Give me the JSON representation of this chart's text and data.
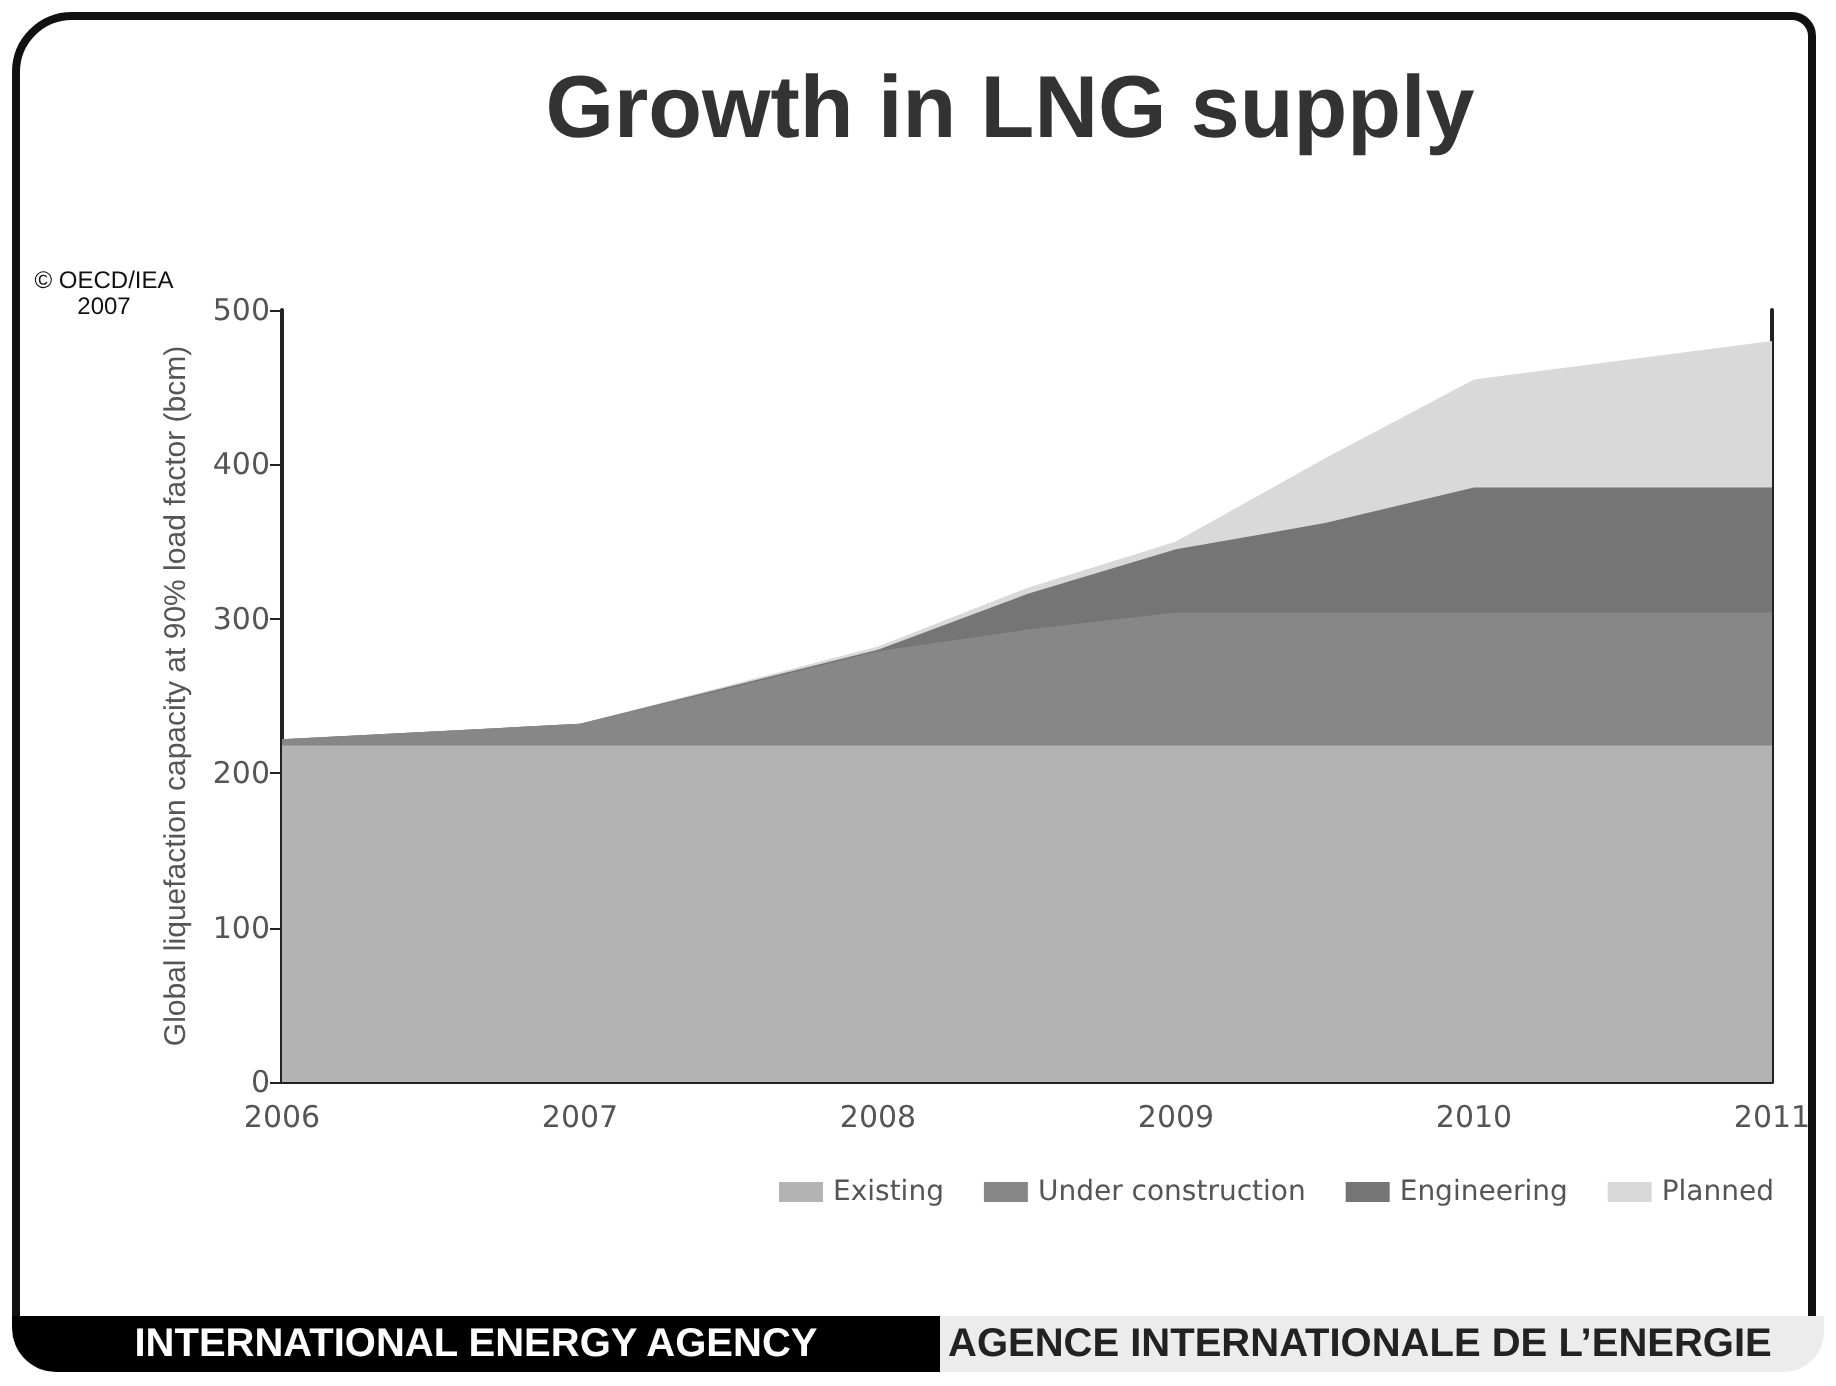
{
  "chart_data": {
    "type": "area",
    "title": "Growth in LNG supply",
    "ylabel": "Global liquefaction capacity at 90% load factor (bcm)",
    "x": [
      2006,
      2007,
      2007.5,
      2008,
      2008.5,
      2009,
      2009.5,
      2010,
      2011
    ],
    "series": [
      {
        "name": "Existing",
        "color": "#b3b3b3",
        "values": [
          218,
          218,
          218,
          218,
          218,
          218,
          218,
          218,
          218
        ]
      },
      {
        "name": "Under construction",
        "color": "#878787",
        "values": [
          4,
          14,
          37,
          61,
          75,
          86,
          86,
          86,
          86
        ]
      },
      {
        "name": "Engineering",
        "color": "#757575",
        "values": [
          0,
          0,
          1,
          1,
          23,
          41,
          58,
          81,
          81
        ]
      },
      {
        "name": "Planned",
        "color": "#d9d9d9",
        "values": [
          0,
          0,
          1,
          2,
          4,
          5,
          42,
          70,
          95
        ]
      }
    ],
    "stacked": true,
    "xlim": [
      2006,
      2011
    ],
    "xticks": [
      2006,
      2007,
      2008,
      2009,
      2010,
      2011
    ],
    "ylim": [
      0,
      500
    ],
    "yticks": [
      0,
      100,
      200,
      300,
      400,
      500
    ],
    "grid": false,
    "legend": "bottom",
    "annotations": [
      "© OECD/IEA 2007",
      "INTERNATIONAL ENERGY AGENCY",
      "AGENCE INTERNATIONALE DE L’ENERGIE"
    ]
  }
}
